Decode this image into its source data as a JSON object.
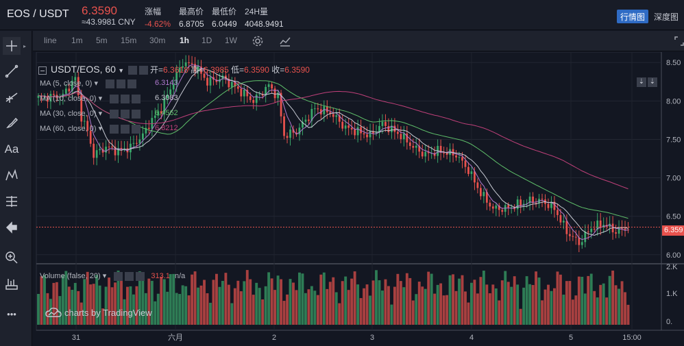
{
  "header": {
    "pair": "EOS / USDT",
    "price": "6.3590",
    "cny": "≈43.9981 CNY",
    "stats": [
      {
        "label": "涨幅",
        "value": "-4.62%",
        "neg": true
      },
      {
        "label": "最高价",
        "value": "6.8705"
      },
      {
        "label": "最低价",
        "value": "6.0449"
      },
      {
        "label": "24H量",
        "value": "4048.9491"
      }
    ],
    "tabs": [
      "行情图",
      "深度图"
    ]
  },
  "toolbar": {
    "intervals": [
      "line",
      "1m",
      "5m",
      "15m",
      "30m",
      "1h",
      "1D",
      "1W"
    ],
    "active_interval": "1h"
  },
  "left_tools": [
    {
      "name": "crosshair-icon"
    },
    {
      "name": "trend-line-icon"
    },
    {
      "name": "fib-icon"
    },
    {
      "name": "brush-icon"
    },
    {
      "name": "text-icon",
      "text": "Aa"
    },
    {
      "name": "pattern-icon"
    },
    {
      "name": "measure-icon"
    },
    {
      "name": "back-arrow-icon"
    },
    {
      "name": "zoom-icon"
    },
    {
      "name": "ruler-icon"
    },
    {
      "name": "more-icon",
      "text": "•••"
    }
  ],
  "legend": {
    "symbol": "USDT/EOS, 60",
    "open_label": "开=",
    "open": "6.3618",
    "high_label": "高=",
    "high": "6.3985",
    "low_label": "低=",
    "low": "6.3590",
    "close_label": "收=",
    "close": "6.3590"
  },
  "indicators": [
    {
      "label": "MA (5, close, 0)",
      "value": "6.3143",
      "color": "#b07ad0"
    },
    {
      "label": "MA (10, close, 0)",
      "value": "6.3083",
      "color": "#c8cbd4"
    },
    {
      "label": "MA (30, close, 0)",
      "value": "6.4562",
      "color": "#5fbf6a"
    },
    {
      "label": "MA (60, close, 0)",
      "value": "6.8212",
      "color": "#c0407a"
    }
  ],
  "volume_legend": {
    "label": "Volume (false, 20)",
    "value": "313.1",
    "extra": "n/a"
  },
  "current_price_tag": "6.359",
  "watermark": "charts by TradingView",
  "chart_data": {
    "type": "candlestick",
    "ylim": [
      5.9,
      8.6
    ],
    "yticks": [
      "8.50",
      "8.00",
      "7.50",
      "7.00",
      "6.50",
      "6.00"
    ],
    "volume_ticks": [
      "2.K",
      "1.K",
      "0."
    ],
    "xticks": [
      "31",
      "六月",
      "2",
      "3",
      "4",
      "5",
      "15:00"
    ],
    "close_anchors": [
      [
        0,
        8.04
      ],
      [
        8,
        8.07
      ],
      [
        12,
        8.3
      ],
      [
        14,
        7.8
      ],
      [
        16,
        7.6
      ],
      [
        18,
        7.3
      ],
      [
        22,
        7.4
      ],
      [
        26,
        7.35
      ],
      [
        30,
        7.4
      ],
      [
        34,
        7.55
      ],
      [
        36,
        7.7
      ],
      [
        40,
        7.9
      ],
      [
        44,
        8.25
      ],
      [
        47,
        8.5
      ],
      [
        51,
        8.45
      ],
      [
        55,
        8.25
      ],
      [
        60,
        8.3
      ],
      [
        65,
        8.15
      ],
      [
        70,
        8.0
      ],
      [
        75,
        8.2
      ],
      [
        78,
        8.05
      ],
      [
        80,
        7.55
      ],
      [
        84,
        7.6
      ],
      [
        90,
        7.9
      ],
      [
        95,
        7.85
      ],
      [
        100,
        7.65
      ],
      [
        104,
        7.6
      ],
      [
        108,
        7.55
      ],
      [
        112,
        7.7
      ],
      [
        118,
        7.55
      ],
      [
        122,
        7.4
      ],
      [
        126,
        7.3
      ],
      [
        130,
        7.35
      ],
      [
        136,
        7.3
      ],
      [
        140,
        7.1
      ],
      [
        144,
        6.8
      ],
      [
        148,
        6.6
      ],
      [
        152,
        6.6
      ],
      [
        156,
        6.65
      ],
      [
        160,
        6.7
      ],
      [
        164,
        6.7
      ],
      [
        168,
        6.6
      ],
      [
        172,
        6.3
      ],
      [
        176,
        6.15
      ],
      [
        180,
        6.35
      ],
      [
        184,
        6.4
      ],
      [
        188,
        6.3
      ],
      [
        192,
        6.36
      ]
    ]
  }
}
